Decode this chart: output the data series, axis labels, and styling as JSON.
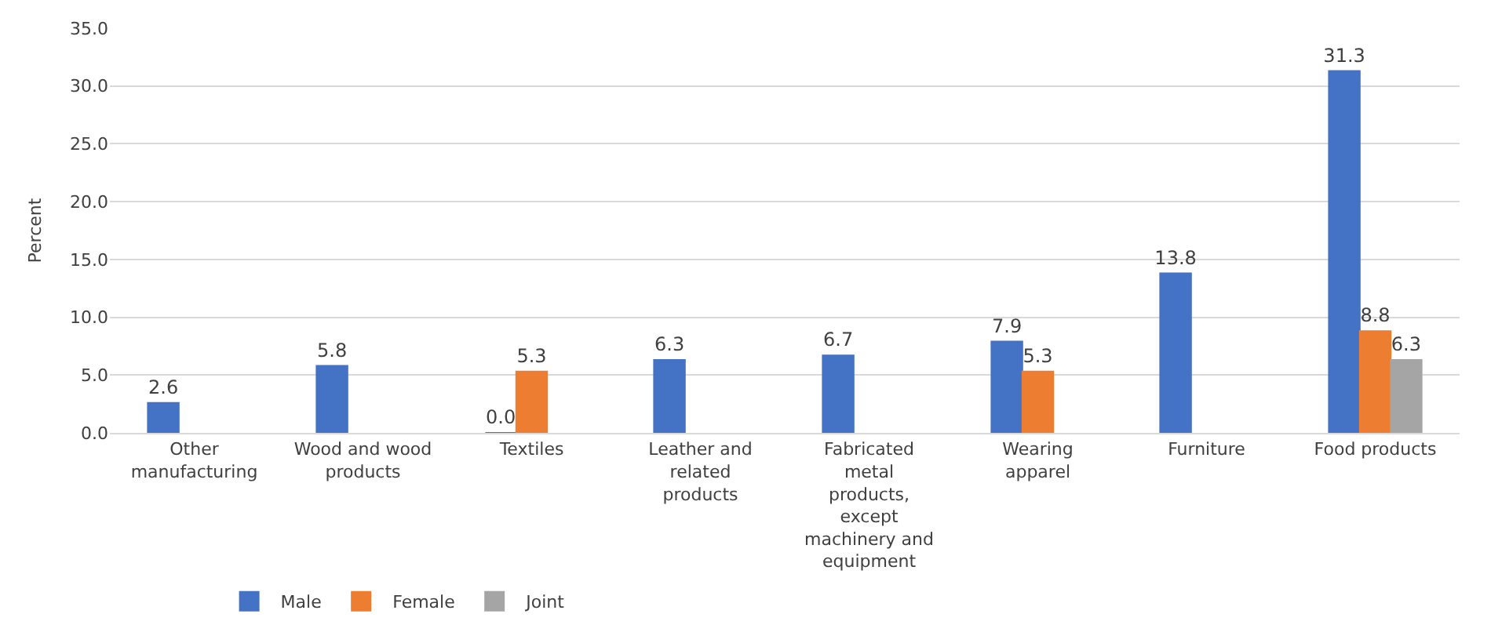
{
  "chart_data": {
    "type": "bar",
    "ylabel": "Percent",
    "categories": [
      "Other manufacturing",
      "Wood and wood products",
      "Textiles",
      "Leather and related products",
      "Fabricated metal products, except machinery and equipment",
      "Wearing apparel",
      "Furniture",
      "Food products"
    ],
    "series": [
      {
        "name": "Male",
        "color": "#4472c4",
        "values": [
          2.6,
          5.8,
          0.0,
          6.3,
          6.7,
          7.9,
          13.8,
          31.3
        ],
        "value_labels": [
          "2.6",
          "5.8",
          "0.0",
          "6.3",
          "6.7",
          "7.9",
          "13.8",
          "31.3"
        ]
      },
      {
        "name": "Female",
        "color": "#ed7d31",
        "values": [
          null,
          null,
          5.3,
          null,
          null,
          5.3,
          null,
          8.8
        ],
        "value_labels": [
          null,
          null,
          "5.3",
          null,
          null,
          "5.3",
          null,
          "8.8"
        ]
      },
      {
        "name": "Joint",
        "color": "#a5a5a5",
        "values": [
          null,
          null,
          null,
          null,
          null,
          null,
          null,
          6.3
        ],
        "value_labels": [
          null,
          null,
          null,
          null,
          null,
          null,
          null,
          "6.3"
        ]
      }
    ],
    "ylim": [
      0,
      35
    ],
    "yticks": [
      {
        "value": 0,
        "label": "0.0"
      },
      {
        "value": 5,
        "label": "5.0"
      },
      {
        "value": 10,
        "label": "10.0"
      },
      {
        "value": 15,
        "label": "15.0"
      },
      {
        "value": 20,
        "label": "20.0"
      },
      {
        "value": 25,
        "label": "25.0"
      },
      {
        "value": 30,
        "label": "30.0"
      },
      {
        "value": 35,
        "label": "35.0"
      }
    ],
    "grid": "y",
    "legend": "bottom left"
  }
}
